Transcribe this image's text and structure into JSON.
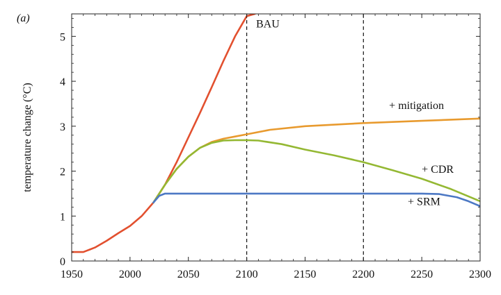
{
  "panel_label": "(a)",
  "chart_data": {
    "type": "line",
    "title": "",
    "xlabel": "",
    "ylabel": "temperature change (°C)",
    "xlim": [
      1950,
      2300
    ],
    "ylim": [
      0,
      5.5
    ],
    "x_ticks": [
      1950,
      2000,
      2050,
      2100,
      2150,
      2200,
      2250,
      2300
    ],
    "y_ticks": [
      0,
      1,
      2,
      3,
      4,
      5
    ],
    "grid": false,
    "reference_lines_x": [
      2100,
      2200
    ],
    "series": [
      {
        "name": "BAU",
        "color": "#e2502f",
        "x": [
          1950,
          1960,
          1970,
          1980,
          1990,
          2000,
          2010,
          2020,
          2030,
          2040,
          2050,
          2060,
          2070,
          2080,
          2090,
          2100,
          2107
        ],
        "y": [
          0.2,
          0.2,
          0.3,
          0.45,
          0.62,
          0.78,
          1.0,
          1.3,
          1.7,
          2.2,
          2.75,
          3.3,
          3.87,
          4.45,
          5.0,
          5.45,
          5.5
        ]
      },
      {
        "name": "+ mitigation",
        "color": "#e89a2e",
        "x": [
          2020,
          2030,
          2040,
          2050,
          2060,
          2070,
          2080,
          2090,
          2100,
          2120,
          2150,
          2200,
          2250,
          2300
        ],
        "y": [
          1.3,
          1.7,
          2.05,
          2.32,
          2.52,
          2.65,
          2.72,
          2.77,
          2.82,
          2.92,
          3.0,
          3.07,
          3.12,
          3.17
        ]
      },
      {
        "name": "+ CDR",
        "color": "#94b833",
        "x": [
          2020,
          2030,
          2040,
          2050,
          2060,
          2070,
          2080,
          2090,
          2100,
          2110,
          2130,
          2150,
          2175,
          2200,
          2225,
          2250,
          2275,
          2300
        ],
        "y": [
          1.3,
          1.7,
          2.05,
          2.32,
          2.52,
          2.63,
          2.68,
          2.69,
          2.69,
          2.68,
          2.6,
          2.48,
          2.35,
          2.2,
          2.02,
          1.83,
          1.6,
          1.33
        ]
      },
      {
        "name": "+ SRM",
        "color": "#4c78c4",
        "x": [
          2020,
          2025,
          2030,
          2100,
          2150,
          2200,
          2250,
          2265,
          2280,
          2290,
          2300
        ],
        "y": [
          1.3,
          1.45,
          1.5,
          1.5,
          1.5,
          1.5,
          1.5,
          1.49,
          1.42,
          1.33,
          1.22
        ]
      }
    ],
    "annotations": [
      {
        "text": "BAU",
        "x": 2108,
        "y": 5.2
      },
      {
        "text": "+ mitigation",
        "x": 2222,
        "y": 3.38
      },
      {
        "text": "+ CDR",
        "x": 2250,
        "y": 1.96
      },
      {
        "text": "+ SRM",
        "x": 2238,
        "y": 1.24
      }
    ]
  }
}
